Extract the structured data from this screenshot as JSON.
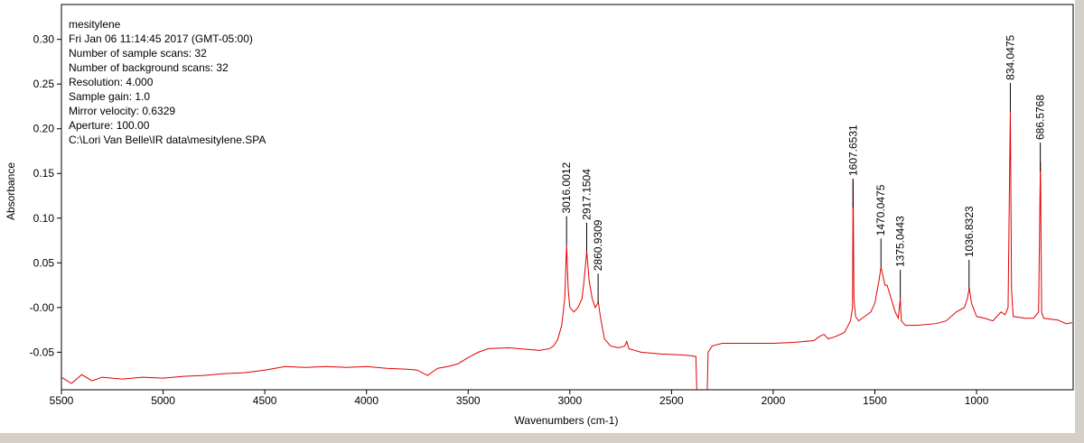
{
  "chart_data": {
    "type": "line",
    "info": [
      "mesitylene",
      "Fri Jan 06 11:14:45 2017 (GMT-05:00)",
      "Number of sample scans:  32",
      "Number of background scans:  32",
      "Resolution:   4.000",
      "Sample gain:  1.0",
      "Mirror velocity:  0.6329",
      "Aperture:  100.00",
      "C:\\Lori Van Belle\\IR data\\mesitylene.SPA"
    ],
    "xlabel": "Wavenumbers (cm-1)",
    "ylabel": "Absorbance",
    "xlim": [
      5500,
      525
    ],
    "ylim": [
      -0.092,
      0.339
    ],
    "xticks": [
      5500,
      5000,
      4500,
      4000,
      3500,
      3000,
      2500,
      2000,
      1500,
      1000
    ],
    "yticks": [
      {
        "value": 0.3,
        "label": "0.30"
      },
      {
        "value": 0.25,
        "label": "0.25"
      },
      {
        "value": 0.2,
        "label": "0.20"
      },
      {
        "value": 0.15,
        "label": "0.15"
      },
      {
        "value": 0.1,
        "label": "0.10"
      },
      {
        "value": 0.05,
        "label": "0.05"
      },
      {
        "value": 0,
        "label": "-0.00"
      },
      {
        "value": -0.05,
        "label": "-0.05"
      }
    ],
    "peaks": [
      3016.0012,
      2917.1504,
      2860.9309,
      1607.6531,
      1470.0475,
      1375.0443,
      1036.8323,
      834.0475,
      686.5768
    ],
    "x": [
      5500,
      5450,
      5400,
      5350,
      5300,
      5200,
      5100,
      5000,
      4900,
      4800,
      4700,
      4600,
      4500,
      4400,
      4300,
      4200,
      4100,
      4000,
      3900,
      3800,
      3750,
      3700,
      3650,
      3600,
      3550,
      3500,
      3450,
      3400,
      3300,
      3200,
      3150,
      3100,
      3080,
      3060,
      3040,
      3025,
      3016,
      3008,
      3000,
      2980,
      2960,
      2940,
      2930,
      2917,
      2905,
      2890,
      2875,
      2860,
      2850,
      2830,
      2800,
      2760,
      2730,
      2720,
      2710,
      2650,
      2550,
      2450,
      2400,
      2380,
      2375,
      2325,
      2320,
      2300,
      2250,
      2200,
      2000,
      1900,
      1800,
      1770,
      1750,
      1730,
      1700,
      1650,
      1620,
      1610,
      1607,
      1603,
      1595,
      1580,
      1550,
      1520,
      1500,
      1480,
      1470,
      1460,
      1450,
      1440,
      1420,
      1400,
      1385,
      1375,
      1370,
      1350,
      1300,
      1200,
      1150,
      1100,
      1060,
      1045,
      1036,
      1025,
      1000,
      960,
      920,
      900,
      880,
      860,
      845,
      834,
      828,
      820,
      760,
      720,
      695,
      686,
      680,
      670,
      600,
      560,
      530
    ],
    "series": [
      {
        "name": "mesitylene",
        "color": "#e00000",
        "values": [
          -0.078,
          -0.085,
          -0.075,
          -0.082,
          -0.078,
          -0.08,
          -0.078,
          -0.079,
          -0.077,
          -0.076,
          -0.074,
          -0.073,
          -0.07,
          -0.066,
          -0.067,
          -0.066,
          -0.067,
          -0.066,
          -0.068,
          -0.069,
          -0.07,
          -0.076,
          -0.068,
          -0.066,
          -0.063,
          -0.056,
          -0.05,
          -0.046,
          -0.045,
          -0.047,
          -0.048,
          -0.046,
          -0.043,
          -0.036,
          -0.02,
          0.01,
          0.07,
          0.02,
          0.0,
          -0.005,
          0.0,
          0.01,
          0.03,
          0.063,
          0.03,
          0.01,
          0.0,
          0.006,
          -0.01,
          -0.035,
          -0.043,
          -0.045,
          -0.043,
          -0.038,
          -0.046,
          -0.05,
          -0.052,
          -0.053,
          -0.054,
          -0.055,
          -0.1,
          -0.1,
          -0.05,
          -0.043,
          -0.04,
          -0.04,
          -0.04,
          -0.039,
          -0.037,
          -0.032,
          -0.03,
          -0.035,
          -0.033,
          -0.028,
          -0.015,
          0.0,
          0.143,
          0.01,
          -0.01,
          -0.015,
          -0.01,
          -0.005,
          0.005,
          0.03,
          0.045,
          0.035,
          0.025,
          0.025,
          0.01,
          -0.005,
          -0.012,
          0.01,
          -0.015,
          -0.02,
          -0.02,
          -0.018,
          -0.015,
          -0.005,
          0.0,
          0.01,
          0.022,
          0.005,
          -0.01,
          -0.012,
          -0.015,
          -0.01,
          -0.005,
          -0.008,
          0.0,
          0.22,
          0.02,
          -0.01,
          -0.012,
          -0.012,
          -0.005,
          0.163,
          -0.005,
          -0.012,
          -0.014,
          -0.018,
          -0.017
        ]
      }
    ]
  }
}
